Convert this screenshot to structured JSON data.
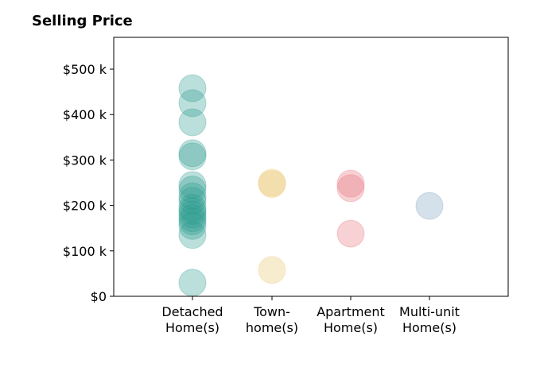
{
  "chart_data": {
    "type": "scatter",
    "title": "Selling Price",
    "categories": [
      "Detached\nHome(s)",
      "Town-\nhome(s)",
      "Apartment\nHome(s)",
      "Multi-unit\nHome(s)"
    ],
    "series": [
      {
        "category_index": 0,
        "color": "#2a9d8f",
        "values": [
          458000,
          425000,
          383000,
          315000,
          308000,
          245000,
          235000,
          220000,
          210000,
          195000,
          188000,
          180000,
          172000,
          165000,
          155000,
          135000,
          30000
        ]
      },
      {
        "category_index": 1,
        "color": "#e9c46a",
        "values": [
          250000,
          247000,
          58000
        ]
      },
      {
        "category_index": 2,
        "color": "#e76f7a",
        "values": [
          248000,
          238000,
          138000
        ]
      },
      {
        "category_index": 3,
        "color": "#7a9fbf",
        "values": [
          199000
        ]
      }
    ],
    "yticks": [
      0,
      100000,
      200000,
      300000,
      400000,
      500000
    ],
    "ytick_labels": [
      "$0",
      "$100 k",
      "$200 k",
      "$300 k",
      "$400 k",
      "$500 k"
    ],
    "ylim": [
      0,
      570000
    ],
    "xlabel": "",
    "ylabel": "",
    "grid": false
  }
}
